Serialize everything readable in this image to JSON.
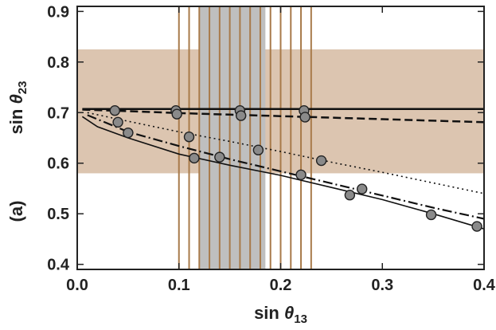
{
  "chart_data": {
    "type": "line",
    "panel_label": "(a)",
    "xlabel": {
      "text": "sin ",
      "symbol": "θ",
      "sub": "13"
    },
    "ylabel": {
      "text": "sin ",
      "symbol": "θ",
      "sub": "23"
    },
    "xlim": [
      0.0,
      0.4
    ],
    "ylim": [
      0.39,
      0.91
    ],
    "x_ticks": [
      0.0,
      0.1,
      0.2,
      0.3,
      0.4
    ],
    "x_tick_labels": [
      "0.0",
      "0.1",
      "0.2",
      "0.3",
      "0.4"
    ],
    "y_ticks": [
      0.4,
      0.5,
      0.6,
      0.7,
      0.8,
      0.9
    ],
    "y_tick_labels": [
      "0.4",
      "0.5",
      "0.6",
      "0.7",
      "0.8",
      "0.9"
    ],
    "grid": false,
    "bands": {
      "horizontal": {
        "y_from": 0.58,
        "y_to": 0.825,
        "color": "#dcc5b0"
      },
      "vertical": {
        "x_from": 0.12,
        "x_to": 0.185,
        "color": "#bfbfbf"
      },
      "vertical_lines": {
        "x": [
          0.1,
          0.11,
          0.12,
          0.13,
          0.14,
          0.15,
          0.16,
          0.17,
          0.18,
          0.19,
          0.2,
          0.21,
          0.22,
          0.23
        ],
        "color": "#a87a4a"
      }
    },
    "series": [
      {
        "style": "solid-thick",
        "x": [
          0.005,
          0.05,
          0.1,
          0.15,
          0.2,
          0.25,
          0.3,
          0.35,
          0.4
        ],
        "y": [
          0.707,
          0.707,
          0.707,
          0.707,
          0.707,
          0.707,
          0.707,
          0.707,
          0.707
        ]
      },
      {
        "style": "dashed",
        "x": [
          0.005,
          0.05,
          0.1,
          0.15,
          0.2,
          0.25,
          0.3,
          0.35,
          0.4
        ],
        "y": [
          0.706,
          0.703,
          0.699,
          0.696,
          0.693,
          0.69,
          0.687,
          0.684,
          0.681
        ]
      },
      {
        "style": "dotted",
        "x": [
          0.01,
          0.05,
          0.1,
          0.15,
          0.2,
          0.25,
          0.3,
          0.35,
          0.4
        ],
        "y": [
          0.7,
          0.683,
          0.662,
          0.643,
          0.623,
          0.602,
          0.582,
          0.561,
          0.54
        ]
      },
      {
        "style": "dashdot",
        "x": [
          0.01,
          0.05,
          0.1,
          0.15,
          0.2,
          0.25,
          0.3,
          0.35,
          0.4
        ],
        "y": [
          0.695,
          0.662,
          0.634,
          0.608,
          0.584,
          0.56,
          0.536,
          0.512,
          0.49
        ]
      },
      {
        "style": "solid-thin",
        "x": [
          0.005,
          0.02,
          0.05,
          0.1,
          0.15,
          0.2,
          0.25,
          0.3,
          0.35,
          0.4
        ],
        "y": [
          0.692,
          0.672,
          0.65,
          0.618,
          0.596,
          0.576,
          0.552,
          0.528,
          0.5,
          0.47
        ]
      }
    ],
    "points": [
      {
        "x": 0.037,
        "y": 0.704
      },
      {
        "x": 0.097,
        "y": 0.704
      },
      {
        "x": 0.098,
        "y": 0.697
      },
      {
        "x": 0.16,
        "y": 0.704
      },
      {
        "x": 0.161,
        "y": 0.694
      },
      {
        "x": 0.223,
        "y": 0.704
      },
      {
        "x": 0.224,
        "y": 0.691
      },
      {
        "x": 0.04,
        "y": 0.681
      },
      {
        "x": 0.05,
        "y": 0.66
      },
      {
        "x": 0.11,
        "y": 0.652
      },
      {
        "x": 0.115,
        "y": 0.61
      },
      {
        "x": 0.14,
        "y": 0.612
      },
      {
        "x": 0.178,
        "y": 0.626
      },
      {
        "x": 0.22,
        "y": 0.577
      },
      {
        "x": 0.24,
        "y": 0.605
      },
      {
        "x": 0.268,
        "y": 0.537
      },
      {
        "x": 0.28,
        "y": 0.549
      },
      {
        "x": 0.348,
        "y": 0.498
      },
      {
        "x": 0.393,
        "y": 0.475
      }
    ],
    "point_color": "#8a8a8a"
  }
}
